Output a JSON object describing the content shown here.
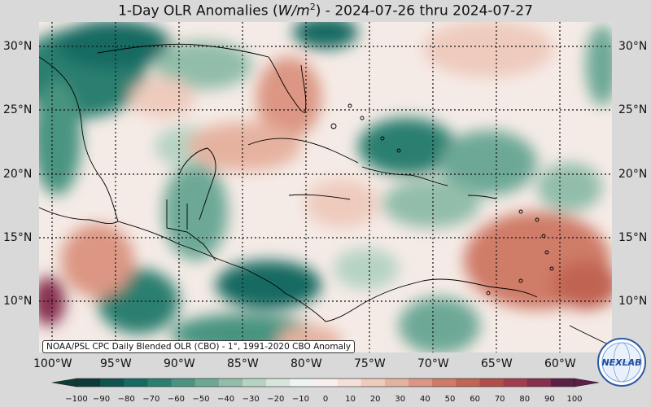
{
  "title": {
    "prefix": "1-Day OLR Anomalies (",
    "unit_base": "W/m",
    "unit_exp": "2",
    "suffix": ") - 2024-07-26 thru 2024-07-27"
  },
  "lat_labels": [
    "30°N",
    "25°N",
    "20°N",
    "15°N",
    "10°N"
  ],
  "lon_labels": [
    "100°W",
    "95°W",
    "90°W",
    "85°W",
    "80°W",
    "75°W",
    "70°W",
    "65°W",
    "60°W"
  ],
  "source_note": "NOAA/PSL CPC Daily Blended OLR (CBO) - 1°, 1991-2020 CBO Anomaly",
  "colorbar": {
    "ticks": [
      "−100",
      "−90",
      "−80",
      "−70",
      "−60",
      "−50",
      "−40",
      "−30",
      "−20",
      "−10",
      "0",
      "10",
      "20",
      "30",
      "40",
      "50",
      "60",
      "70",
      "80",
      "90",
      "100"
    ],
    "colors": [
      "#0e3b38",
      "#0f5450",
      "#136b62",
      "#2a7f70",
      "#4a9481",
      "#6da896",
      "#92bdaa",
      "#b6d3c3",
      "#d6e6dc",
      "#eef4f0",
      "#f7f0ee",
      "#f4e0d8",
      "#eecbbd",
      "#e6b2a0",
      "#dc9683",
      "#cf7b68",
      "#c16453",
      "#b34d4a",
      "#a23d4d",
      "#862f4f",
      "#5e1f46"
    ]
  },
  "logo": {
    "text": "NEXLAB",
    "icon": "globe-logo-icon"
  },
  "colors": {
    "background": "#d9d9d9",
    "grid": "#111111",
    "coast": "#000000"
  }
}
